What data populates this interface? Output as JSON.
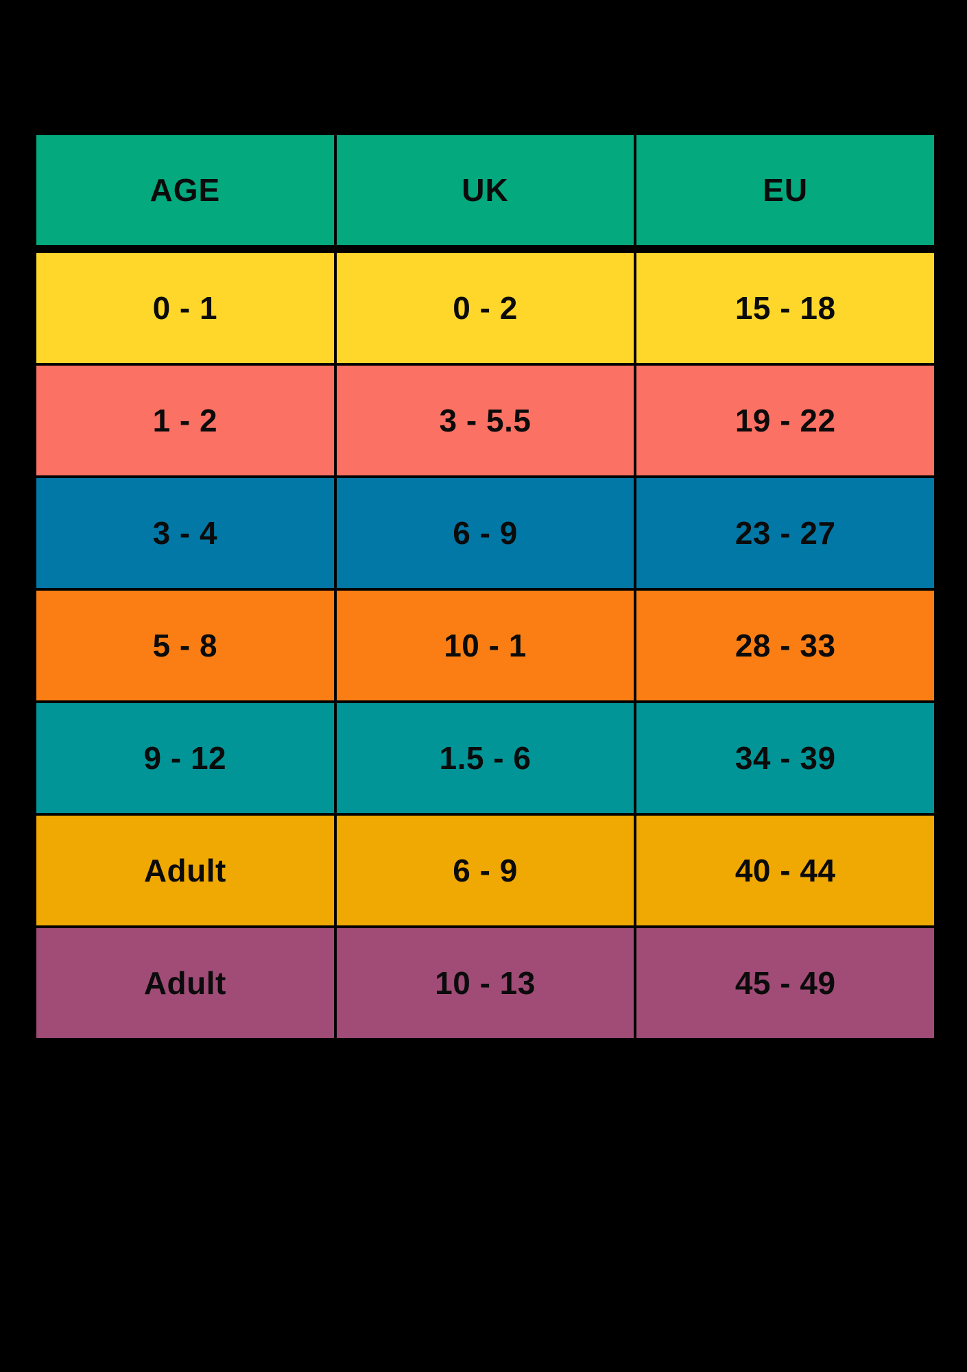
{
  "chart_data": {
    "type": "table",
    "columns": [
      "AGE",
      "UK",
      "EU"
    ],
    "rows": [
      [
        "0 - 1",
        "0 - 2",
        "15 - 18"
      ],
      [
        "1 - 2",
        "3 - 5.5",
        "19 - 22"
      ],
      [
        "3 - 4",
        "6 - 9",
        "23 - 27"
      ],
      [
        "5 - 8",
        "10 - 1",
        "28 - 33"
      ],
      [
        "9 - 12",
        "1.5 - 6",
        "34 - 39"
      ],
      [
        "Adult",
        "6 - 9",
        "40 - 44"
      ],
      [
        "Adult",
        "10 - 13",
        "45 - 49"
      ]
    ],
    "header_color": "#04A97D",
    "row_colors": [
      "#FFD72B",
      "#FB7163",
      "#0278A6",
      "#FB7E14",
      "#029598",
      "#F0A902",
      "#A04C77"
    ],
    "text_color": "#0B0B0B",
    "background": "#000000",
    "grid": "on",
    "legend": "none"
  }
}
